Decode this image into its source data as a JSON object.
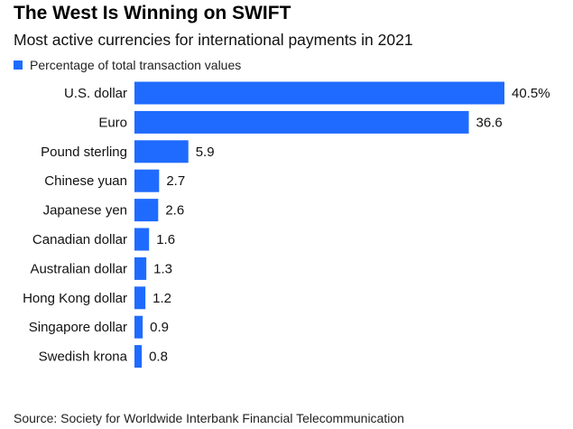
{
  "chart_data": {
    "type": "bar",
    "orientation": "horizontal",
    "title": "The West Is Winning on SWIFT",
    "subtitle": "Most active currencies for international payments in 2021",
    "legend": {
      "label": "Percentage of total transaction values",
      "placement": "top-left"
    },
    "categories": [
      "U.S. dollar",
      "Euro",
      "Pound sterling",
      "Chinese yuan",
      "Japanese yen",
      "Canadian dollar",
      "Australian dollar",
      "Hong Kong dollar",
      "Singapore dollar",
      "Swedish krona"
    ],
    "values": [
      40.5,
      36.6,
      5.9,
      2.7,
      2.6,
      1.6,
      1.3,
      1.2,
      0.9,
      0.8
    ],
    "value_labels": [
      "40.5%",
      "36.6",
      "5.9",
      "2.7",
      "2.6",
      "1.6",
      "1.3",
      "1.2",
      "0.9",
      "0.8"
    ],
    "xlim": [
      0,
      40.5
    ],
    "grid": false,
    "colors": {
      "bar": "#1f6bff"
    },
    "source": "Source: Society for Worldwide Interbank Financial Telecommunication"
  }
}
